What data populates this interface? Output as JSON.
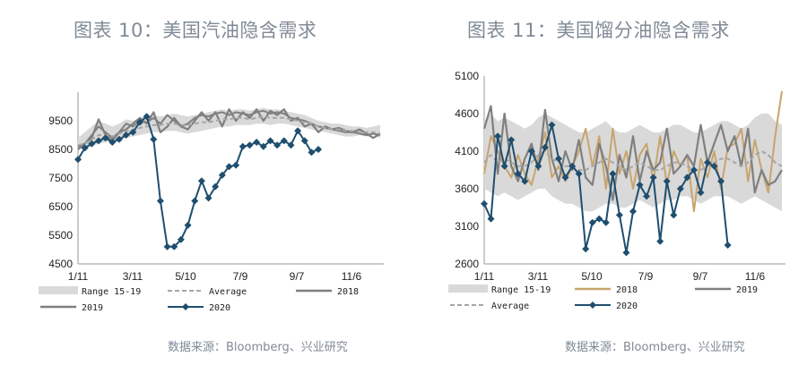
{
  "page": {
    "left_title": "图表 10：美国汽油隐含需求",
    "right_title": "图表 11：美国馏分油隐含需求",
    "left_source": "数据来源：Bloomberg、兴业研究",
    "right_source": "数据来源：Bloomberg、兴业研究"
  },
  "colors": {
    "range": "#d9d9d9",
    "average": "#a6a6a6",
    "y2018_left": "#7f7f7f",
    "y2018_right": "#c8a46e",
    "y2019": "#7f7f7f",
    "y2020": "#1f4e6e",
    "axis": "#999999",
    "text": "#7f8a96"
  },
  "chart_data": [
    {
      "type": "line",
      "title": "图表 10：美国汽油隐含需求",
      "ylim": [
        4500,
        10500
      ],
      "yticks": [
        "4500",
        "5500",
        "6500",
        "7500",
        "8500",
        "9500"
      ],
      "xticks": [
        "1/11",
        "3/11",
        "5/10",
        "7/9",
        "9/7",
        "11/6"
      ],
      "legend": [
        {
          "label": "Range 15-19",
          "style": "band"
        },
        {
          "label": "Average",
          "style": "dashed"
        },
        {
          "label": "2018",
          "style": "line"
        },
        {
          "label": "2019",
          "style": "line"
        },
        {
          "label": "2020",
          "style": "line-marker"
        }
      ],
      "series": [
        {
          "name": "Range 15-19",
          "kind": "band",
          "low": [
            8500,
            8550,
            8600,
            8700,
            8750,
            8800,
            8850,
            8900,
            8950,
            9000,
            9050,
            9100,
            9100,
            9150,
            9150,
            9100,
            9050,
            9100,
            9150,
            9200,
            9250,
            9300,
            9300,
            9350,
            9350,
            9350,
            9400,
            9400,
            9350,
            9400,
            9400,
            9350,
            9300,
            9250,
            9200,
            9150,
            9100,
            9050,
            9000,
            8950,
            8950,
            9000,
            8950,
            9000,
            8900
          ],
          "high": [
            8900,
            9100,
            9300,
            9500,
            9400,
            9300,
            9400,
            9550,
            9500,
            9600,
            9650,
            9700,
            9650,
            9700,
            9750,
            9700,
            9650,
            9700,
            9750,
            9800,
            9850,
            9900,
            9850,
            9900,
            9900,
            9850,
            9900,
            9950,
            9900,
            9900,
            9850,
            9800,
            9750,
            9700,
            9600,
            9500,
            9450,
            9400,
            9400,
            9350,
            9300,
            9300,
            9250,
            9300,
            9350
          ]
        },
        {
          "name": "Average",
          "values": [
            8650,
            8700,
            8850,
            9000,
            9000,
            8950,
            9050,
            9150,
            9150,
            9250,
            9300,
            9350,
            9350,
            9400,
            9400,
            9350,
            9350,
            9400,
            9450,
            9450,
            9500,
            9550,
            9550,
            9600,
            9600,
            9550,
            9600,
            9650,
            9600,
            9600,
            9600,
            9550,
            9500,
            9450,
            9400,
            9300,
            9250,
            9200,
            9200,
            9150,
            9150,
            9100,
            9100,
            9100,
            9050
          ]
        },
        {
          "name": "2018",
          "values": [
            8600,
            8700,
            9000,
            9300,
            9100,
            8900,
            9100,
            9400,
            9300,
            9500,
            9450,
            9600,
            9400,
            9700,
            9500,
            9300,
            9400,
            9600,
            9700,
            9650,
            9750,
            9800,
            9700,
            9800,
            9750,
            9700,
            9800,
            9850,
            9750,
            9800,
            9750,
            9600,
            9550,
            9500,
            9400,
            9300,
            9250,
            9200,
            9150,
            9100,
            9100,
            9050,
            9000,
            9050,
            9000
          ]
        },
        {
          "name": "2019",
          "values": [
            8500,
            8700,
            8900,
            9550,
            9000,
            8800,
            9100,
            9200,
            9400,
            9600,
            9400,
            9800,
            9100,
            9300,
            9600,
            9300,
            9200,
            9500,
            9800,
            9500,
            9800,
            9300,
            9900,
            9500,
            9800,
            9600,
            9900,
            9500,
            9850,
            9700,
            9900,
            9500,
            9600,
            9300,
            9400,
            9100,
            9300,
            9200,
            9250,
            9150,
            9100,
            9200,
            9050,
            8900,
            9050
          ]
        },
        {
          "name": "2020",
          "values": [
            8150,
            8550,
            8700,
            8800,
            8900,
            8750,
            8850,
            9000,
            9100,
            9450,
            9650,
            8850,
            6700,
            5100,
            5100,
            5350,
            5850,
            6700,
            7400,
            6800,
            7200,
            7600,
            7900,
            7950,
            8600,
            8650,
            8750,
            8600,
            8800,
            8650,
            8800,
            8650,
            9150,
            8800,
            8400,
            8500
          ]
        }
      ]
    },
    {
      "type": "line",
      "title": "图表 11：美国馏分油隐含需求",
      "ylim": [
        2600,
        5100
      ],
      "yticks": [
        "2600",
        "3100",
        "3600",
        "4100",
        "4600",
        "5100"
      ],
      "xticks": [
        "1/11",
        "3/11",
        "5/10",
        "7/9",
        "9/7",
        "11/6"
      ],
      "legend": [
        {
          "label": "Range 15-19",
          "style": "band"
        },
        {
          "label": "2018",
          "style": "line"
        },
        {
          "label": "2019",
          "style": "line"
        },
        {
          "label": "Average",
          "style": "dashed"
        },
        {
          "label": "2020",
          "style": "line-marker"
        }
      ],
      "series": [
        {
          "name": "Range 15-19",
          "kind": "band",
          "low": [
            3600,
            3550,
            3500,
            3550,
            3500,
            3450,
            3500,
            3550,
            3600,
            3600,
            3500,
            3450,
            3400,
            3400,
            3350,
            3300,
            3300,
            3350,
            3400,
            3400,
            3350,
            3350,
            3400,
            3450,
            3400,
            3350,
            3400,
            3450,
            3450,
            3500,
            3500,
            3450,
            3400,
            3450,
            3500,
            3500,
            3500,
            3450,
            3400,
            3450,
            3500,
            3450,
            3400,
            3350,
            3300
          ],
          "high": [
            4500,
            4600,
            4500,
            4550,
            4500,
            4450,
            4400,
            4450,
            4550,
            4600,
            4550,
            4500,
            4450,
            4400,
            4350,
            4350,
            4400,
            4450,
            4500,
            4400,
            4350,
            4350,
            4400,
            4450,
            4400,
            4350,
            4350,
            4400,
            4450,
            4450,
            4400,
            4350,
            4350,
            4400,
            4450,
            4500,
            4500,
            4450,
            4400,
            4450,
            4550,
            4600,
            4600,
            4500,
            4450
          ]
        },
        {
          "name": "Average",
          "values": [
            3950,
            4050,
            3950,
            4000,
            3950,
            3900,
            3900,
            3950,
            4050,
            4100,
            4000,
            3950,
            3900,
            3900,
            3850,
            3850,
            3900,
            3950,
            4000,
            3950,
            3900,
            3850,
            3900,
            3950,
            3900,
            3850,
            3850,
            3900,
            3950,
            3950,
            3900,
            3850,
            3850,
            3900,
            3950,
            4000,
            4000,
            3950,
            3900,
            3950,
            4050,
            4100,
            4050,
            3950,
            3900
          ]
        },
        {
          "name": "2018",
          "values": [
            3800,
            4300,
            4100,
            3900,
            3750,
            4050,
            3800,
            3650,
            4000,
            4350,
            3750,
            3900,
            3700,
            3900,
            4100,
            4400,
            3900,
            4300,
            3600,
            4400,
            3800,
            4100,
            3600,
            4050,
            4200,
            3700,
            4300,
            3650,
            4100,
            3900,
            4050,
            3300,
            4000,
            3750,
            4100,
            3600,
            4150,
            4200,
            4400,
            3700,
            4250,
            3850,
            3550,
            4300,
            4900
          ]
        },
        {
          "name": "2019",
          "values": [
            4400,
            4700,
            3800,
            4600,
            3900,
            3700,
            4000,
            4200,
            3850,
            4650,
            4000,
            3700,
            4100,
            3850,
            4250,
            3750,
            3650,
            4200,
            3900,
            3450,
            4050,
            3750,
            4300,
            3700,
            4100,
            3850,
            3950,
            4400,
            3800,
            3900,
            4050,
            3900,
            4450,
            3950,
            4200,
            4450,
            4100,
            4300,
            3900,
            4400,
            3550,
            3850,
            3650,
            3700,
            3850
          ]
        },
        {
          "name": "2020",
          "values": [
            3400,
            3200,
            4300,
            3900,
            4250,
            3800,
            3700,
            4100,
            3900,
            4150,
            4450,
            4000,
            3750,
            3900,
            3800,
            2800,
            3150,
            3200,
            3150,
            3800,
            3250,
            2750,
            3300,
            3650,
            3500,
            3750,
            2900,
            3700,
            3250,
            3600,
            3750,
            3850,
            3550,
            3950,
            3900,
            3700,
            2850
          ]
        }
      ]
    }
  ]
}
